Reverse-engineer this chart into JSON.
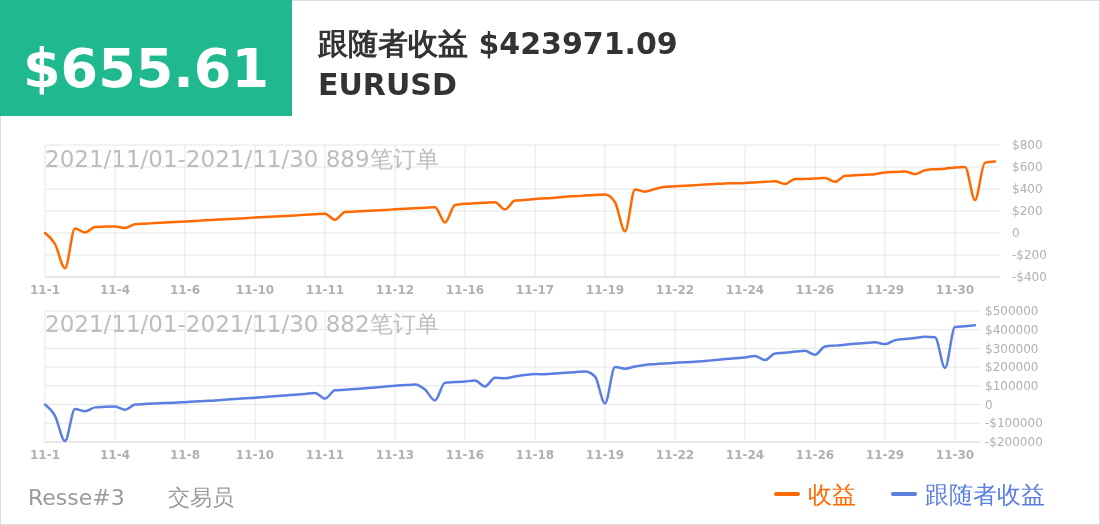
{
  "chart_data": [
    {
      "type": "other",
      "annotations": [
        "$655.61",
        "跟随者收益 $423971.09",
        "EURUSD",
        "Resse#3",
        "交易员"
      ]
    },
    {
      "type": "line",
      "title": "2021/11/01-2021/11/30 889笔订单",
      "categories": [
        "11-1",
        null,
        null,
        null,
        null,
        null,
        null,
        "11-4",
        null,
        null,
        null,
        null,
        null,
        null,
        "11-6",
        null,
        null,
        null,
        null,
        null,
        null,
        "11-10",
        null,
        null,
        null,
        null,
        null,
        null,
        "11-11",
        null,
        null,
        null,
        null,
        null,
        null,
        "11-12",
        null,
        null,
        null,
        null,
        null,
        null,
        "11-16",
        null,
        null,
        null,
        null,
        null,
        null,
        "11-17",
        null,
        null,
        null,
        null,
        null,
        null,
        "11-19",
        null,
        null,
        null,
        null,
        null,
        null,
        "11-22",
        null,
        null,
        null,
        null,
        null,
        null,
        "11-24",
        null,
        null,
        null,
        null,
        null,
        null,
        "11-26",
        null,
        null,
        null,
        null,
        null,
        null,
        "11-29",
        null,
        null,
        null,
        null,
        null,
        null,
        "11-30",
        null,
        null,
        null,
        null
      ],
      "series": [
        {
          "name": "收益",
          "color": "#ff6a00",
          "values": [
            0,
            -100,
            -320,
            40,
            5,
            55,
            58,
            60,
            45,
            80,
            85,
            90,
            95,
            100,
            105,
            110,
            115,
            120,
            125,
            130,
            135,
            140,
            145,
            150,
            155,
            160,
            165,
            170,
            175,
            120,
            190,
            195,
            200,
            205,
            210,
            215,
            220,
            225,
            230,
            235,
            95,
            255,
            265,
            270,
            275,
            280,
            215,
            295,
            300,
            310,
            315,
            320,
            330,
            335,
            340,
            345,
            350,
            280,
            15,
            395,
            375,
            400,
            420,
            425,
            430,
            435,
            440,
            445,
            450,
            452,
            455,
            460,
            465,
            470,
            445,
            490,
            492,
            495,
            500,
            465,
            520,
            525,
            530,
            535,
            550,
            555,
            560,
            535,
            570,
            580,
            585,
            595,
            600,
            300,
            640,
            650
          ]
        }
      ],
      "ylim": [
        -400,
        800
      ],
      "yticks": [
        {
          "value": -400,
          "label": "-$400"
        },
        {
          "value": -200,
          "label": "-$200"
        },
        0,
        {
          "value": 200,
          "label": "$200"
        },
        {
          "value": 400,
          "label": "$400"
        },
        {
          "value": 600,
          "label": "$600"
        },
        {
          "value": 800,
          "label": "$800"
        }
      ],
      "grid": true,
      "legend": "bottom right"
    },
    {
      "type": "line",
      "title": "2021/11/01-2021/11/30 882笔订单",
      "categories": [
        "11-1",
        null,
        null,
        null,
        null,
        null,
        null,
        "11-4",
        null,
        null,
        null,
        null,
        null,
        null,
        "11-8",
        null,
        null,
        null,
        null,
        null,
        null,
        "11-10",
        null,
        null,
        null,
        null,
        null,
        null,
        "11-11",
        null,
        null,
        null,
        null,
        null,
        null,
        "11-13",
        null,
        null,
        null,
        null,
        null,
        null,
        "11-16",
        null,
        null,
        null,
        null,
        null,
        null,
        "11-18",
        null,
        null,
        null,
        null,
        null,
        null,
        "11-19",
        null,
        null,
        null,
        null,
        null,
        null,
        "11-22",
        null,
        null,
        null,
        null,
        null,
        null,
        "11-24",
        null,
        null,
        null,
        null,
        null,
        null,
        "11-26",
        null,
        null,
        null,
        null,
        null,
        null,
        "11-29",
        null,
        null,
        null,
        null,
        null,
        null,
        "11-30",
        null,
        null
      ],
      "series": [
        {
          "name": "跟随者收益",
          "color": "#5b7fe0",
          "values": [
            0,
            -60000,
            -195000,
            -24000,
            -36000,
            -15000,
            -12000,
            -10000,
            -28000,
            0,
            3000,
            6000,
            8000,
            10000,
            13000,
            16000,
            19000,
            22000,
            26000,
            30000,
            34000,
            37000,
            41000,
            45000,
            49000,
            53000,
            57000,
            62000,
            32000,
            76000,
            79000,
            83000,
            87000,
            91000,
            96000,
            101000,
            104000,
            107000,
            80000,
            22000,
            117000,
            120000,
            123000,
            128000,
            97000,
            143000,
            140000,
            150000,
            158000,
            163000,
            162000,
            166000,
            170000,
            173000,
            177000,
            150000,
            6000,
            201000,
            192000,
            203000,
            212000,
            216000,
            220000,
            223000,
            226000,
            229000,
            233000,
            238000,
            243000,
            247000,
            252000,
            260000,
            238000,
            273000,
            277000,
            283000,
            287000,
            266000,
            310000,
            315000,
            320000,
            325000,
            329000,
            333000,
            323000,
            344000,
            350000,
            356000,
            362000,
            360000,
            196000,
            414000,
            419000,
            424000
          ]
        }
      ],
      "ylim": [
        -200000,
        500000
      ],
      "yticks": [
        {
          "value": -200000,
          "label": "-$200000"
        },
        {
          "value": -100000,
          "label": "-$100000"
        },
        0,
        {
          "value": 100000,
          "label": "$100000"
        },
        {
          "value": 200000,
          "label": "$200000"
        },
        {
          "value": 300000,
          "label": "$300000"
        },
        {
          "value": 400000,
          "label": "$400000"
        },
        {
          "value": 500000,
          "label": "$500000"
        }
      ],
      "grid": true,
      "legend": "bottom right"
    }
  ]
}
